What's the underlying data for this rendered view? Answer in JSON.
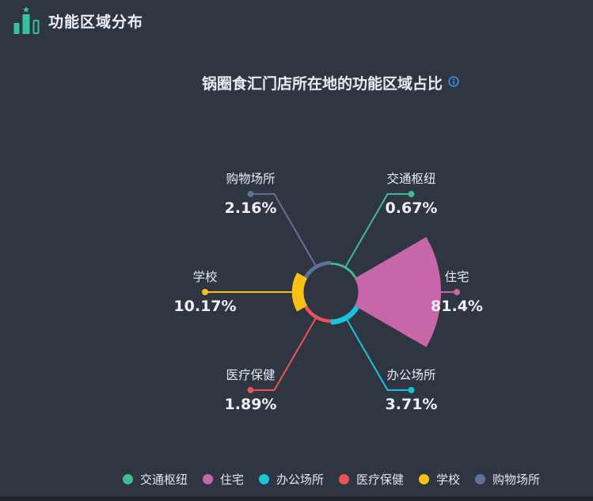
{
  "header": {
    "title": "功能区域分布",
    "icon": "podium-bar-chart-icon"
  },
  "subtitle": {
    "text": "锅圈食汇门店所在地的功能区域占比",
    "info_icon": "info-circle-icon"
  },
  "colors": {
    "background": "#2f3641",
    "bottom_strip": "#21252d",
    "text_primary": "#e8ebef",
    "icon_accent": "#36c29e",
    "info_blue": "#3e8ee6"
  },
  "chart_data": {
    "type": "rose-pie",
    "title": "锅圈食汇门店所在地的功能区域占比",
    "unit": "%",
    "sector_span_deg": 60,
    "legend_position": "bottom",
    "series": [
      {
        "name": "交通枢纽",
        "value": 0.67,
        "label": "0.67%",
        "color": "#3dbe92",
        "angle_deg": 60
      },
      {
        "name": "住宅",
        "value": 81.4,
        "label": "81.4%",
        "color": "#c767a9",
        "angle_deg": 0
      },
      {
        "name": "办公场所",
        "value": 3.71,
        "label": "3.71%",
        "color": "#18c4dc",
        "angle_deg": 300
      },
      {
        "name": "医疗保健",
        "value": 1.89,
        "label": "1.89%",
        "color": "#ea5455",
        "angle_deg": 240
      },
      {
        "name": "学校",
        "value": 10.17,
        "label": "10.17%",
        "color": "#f9c118",
        "angle_deg": 180
      },
      {
        "name": "购物场所",
        "value": 2.16,
        "label": "2.16%",
        "color": "#5e7198",
        "angle_deg": 120
      }
    ]
  }
}
